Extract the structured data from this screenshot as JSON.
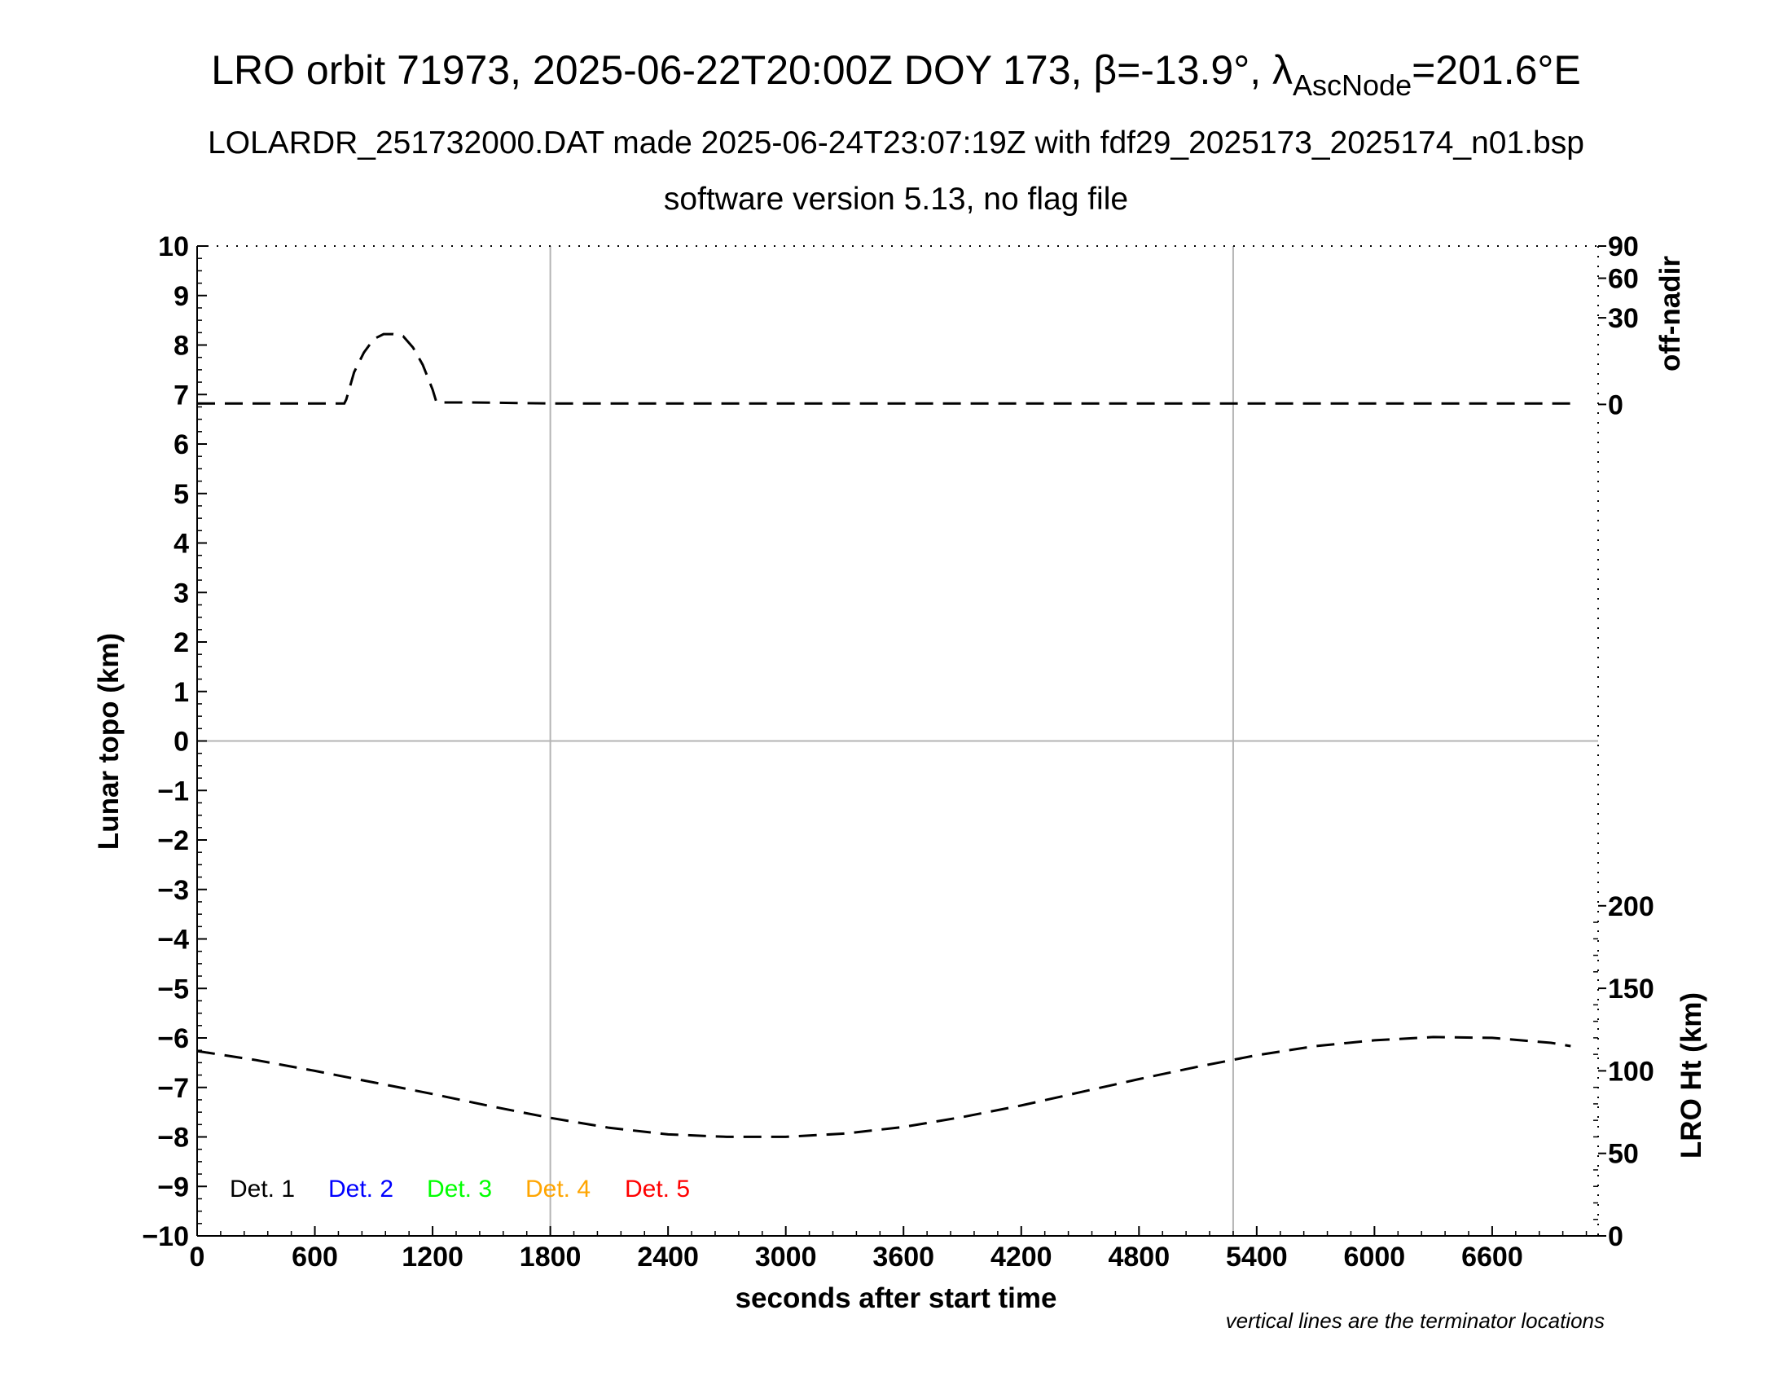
{
  "chart_data": {
    "type": "line",
    "title_main": "LRO orbit 71973, 2025-06-22T20:00Z DOY 173, ",
    "title_beta": "β=-13.9°, λ",
    "title_sub_asc": "AscNode",
    "title_tail": "=201.6°E",
    "subtitle1": "LOLARDR_251732000.DAT made 2025-06-24T23:07:19Z with fdf29_2025173_2025174_n01.bsp",
    "subtitle2": "software version 5.13, no flag file",
    "xlabel": "seconds after start time",
    "ylabel": "Lunar topo (km)",
    "y2label_top": "off-nadir",
    "y2label_bottom": "LRO Ht (km)",
    "xlim": [
      0,
      7140
    ],
    "ylim": [
      -10,
      10
    ],
    "x_ticks": [
      0,
      600,
      1200,
      1800,
      2400,
      3000,
      3600,
      4200,
      4800,
      5400,
      6000,
      6600
    ],
    "x_tick_labels": [
      "0",
      "600",
      "1200",
      "1800",
      "2400",
      "3000",
      "3600",
      "4200",
      "4800",
      "5400",
      "6000",
      "6600"
    ],
    "y_ticks": [
      -10,
      -9,
      -8,
      -7,
      -6,
      -5,
      -4,
      -3,
      -2,
      -1,
      0,
      1,
      2,
      3,
      4,
      5,
      6,
      7,
      8,
      9,
      10
    ],
    "y_tick_labels": [
      "−10",
      "−9",
      "−8",
      "−7",
      "−6",
      "−5",
      "−4",
      "−3",
      "−2",
      "−1",
      "0",
      "1",
      "2",
      "3",
      "4",
      "5",
      "6",
      "7",
      "8",
      "9",
      "10"
    ],
    "off_nadir_ticks": [
      {
        "label": "90",
        "y_topo": 10.0
      },
      {
        "label": "60",
        "y_topo": 9.35
      },
      {
        "label": "30",
        "y_topo": 8.55
      },
      {
        "label": "0",
        "y_topo": 6.8
      }
    ],
    "lro_ht_ticks": [
      {
        "label": "200",
        "value": 200
      },
      {
        "label": "150",
        "value": 150
      },
      {
        "label": "100",
        "value": 100
      },
      {
        "label": "50",
        "value": 50
      },
      {
        "label": "0",
        "value": 0
      }
    ],
    "lro_ht_range_on_topo": {
      "ht_min": 0,
      "ht_max": 200,
      "topo_at_min": -10,
      "topo_at_max": -3.33
    },
    "terminator_lines_x": [
      1800,
      5280
    ],
    "zero_line_y": 0,
    "series": [
      {
        "name": "off-nadir",
        "style": "dashed",
        "color": "#000000",
        "x": [
          0,
          750,
          760,
          800,
          850,
          900,
          950,
          1000,
          1050,
          1100,
          1150,
          1200,
          1220,
          1240,
          1400,
          1800,
          2400,
          3000,
          3600,
          4200,
          4800,
          5400,
          6000,
          6600,
          7000
        ],
        "y": [
          6.82,
          6.82,
          6.9,
          7.45,
          7.85,
          8.12,
          8.22,
          8.22,
          8.18,
          7.95,
          7.6,
          7.1,
          6.84,
          6.84,
          6.84,
          6.82,
          6.82,
          6.82,
          6.82,
          6.82,
          6.82,
          6.82,
          6.82,
          6.82,
          6.82
        ]
      },
      {
        "name": "LRO Ht",
        "style": "dashed",
        "color": "#000000",
        "x": [
          0,
          300,
          600,
          900,
          1200,
          1500,
          1800,
          2100,
          2400,
          2700,
          3000,
          3300,
          3600,
          3900,
          4200,
          4500,
          4800,
          5100,
          5400,
          5700,
          6000,
          6300,
          6600,
          6900,
          7000
        ],
        "ht": [
          112,
          106.5,
          100,
          93,
          86,
          78.5,
          71.5,
          65.5,
          61.5,
          60,
          60,
          62,
          66,
          72,
          79,
          87,
          95,
          102.5,
          109.5,
          115,
          118.5,
          120.5,
          120,
          117,
          115
        ]
      }
    ],
    "legend": [
      {
        "label": "Det. 1",
        "color": "#000000"
      },
      {
        "label": "Det. 2",
        "color": "#0000ff"
      },
      {
        "label": "Det. 3",
        "color": "#00ff00"
      },
      {
        "label": "Det. 4",
        "color": "#ffa500"
      },
      {
        "label": "Det. 5",
        "color": "#ff0000"
      }
    ],
    "note": "vertical lines are the terminator locations"
  }
}
